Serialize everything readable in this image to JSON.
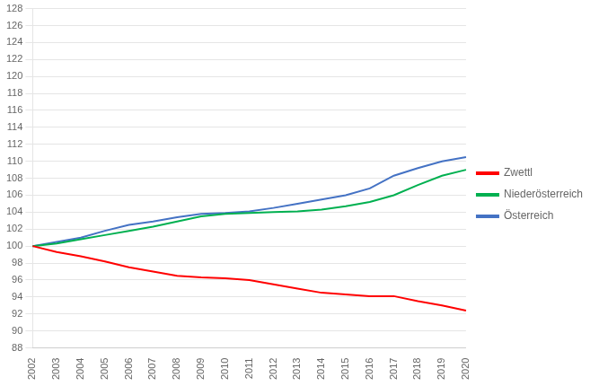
{
  "chart_data": {
    "type": "line",
    "categories": [
      2002,
      2003,
      2004,
      2005,
      2006,
      2007,
      2008,
      2009,
      2010,
      2011,
      2012,
      2013,
      2014,
      2015,
      2016,
      2017,
      2018,
      2019,
      2020
    ],
    "series": [
      {
        "name": "Zwettl",
        "color": "#ff0000",
        "values": [
          100.0,
          99.3,
          98.8,
          98.2,
          97.5,
          97.0,
          96.5,
          96.3,
          96.2,
          96.0,
          95.5,
          95.0,
          94.5,
          94.3,
          94.1,
          94.1,
          93.5,
          93.0,
          92.4
        ]
      },
      {
        "name": "Niederösterreich",
        "color": "#00b050",
        "values": [
          100.0,
          100.3,
          100.8,
          101.3,
          101.8,
          102.3,
          102.9,
          103.5,
          103.8,
          103.9,
          104.0,
          104.1,
          104.3,
          104.7,
          105.2,
          106.0,
          107.2,
          108.3,
          109.0
        ]
      },
      {
        "name": "Österreich",
        "color": "#4472c4",
        "values": [
          100.0,
          100.5,
          101.0,
          101.8,
          102.5,
          102.9,
          103.4,
          103.8,
          103.9,
          104.1,
          104.5,
          105.0,
          105.5,
          106.0,
          106.8,
          108.3,
          109.2,
          110.0,
          110.5
        ]
      }
    ],
    "ylim": [
      88,
      128
    ],
    "yticks": [
      88,
      90,
      92,
      94,
      96,
      98,
      100,
      102,
      104,
      106,
      108,
      110,
      112,
      114,
      116,
      118,
      120,
      122,
      124,
      126,
      128
    ],
    "grid": true,
    "legend": "right"
  }
}
